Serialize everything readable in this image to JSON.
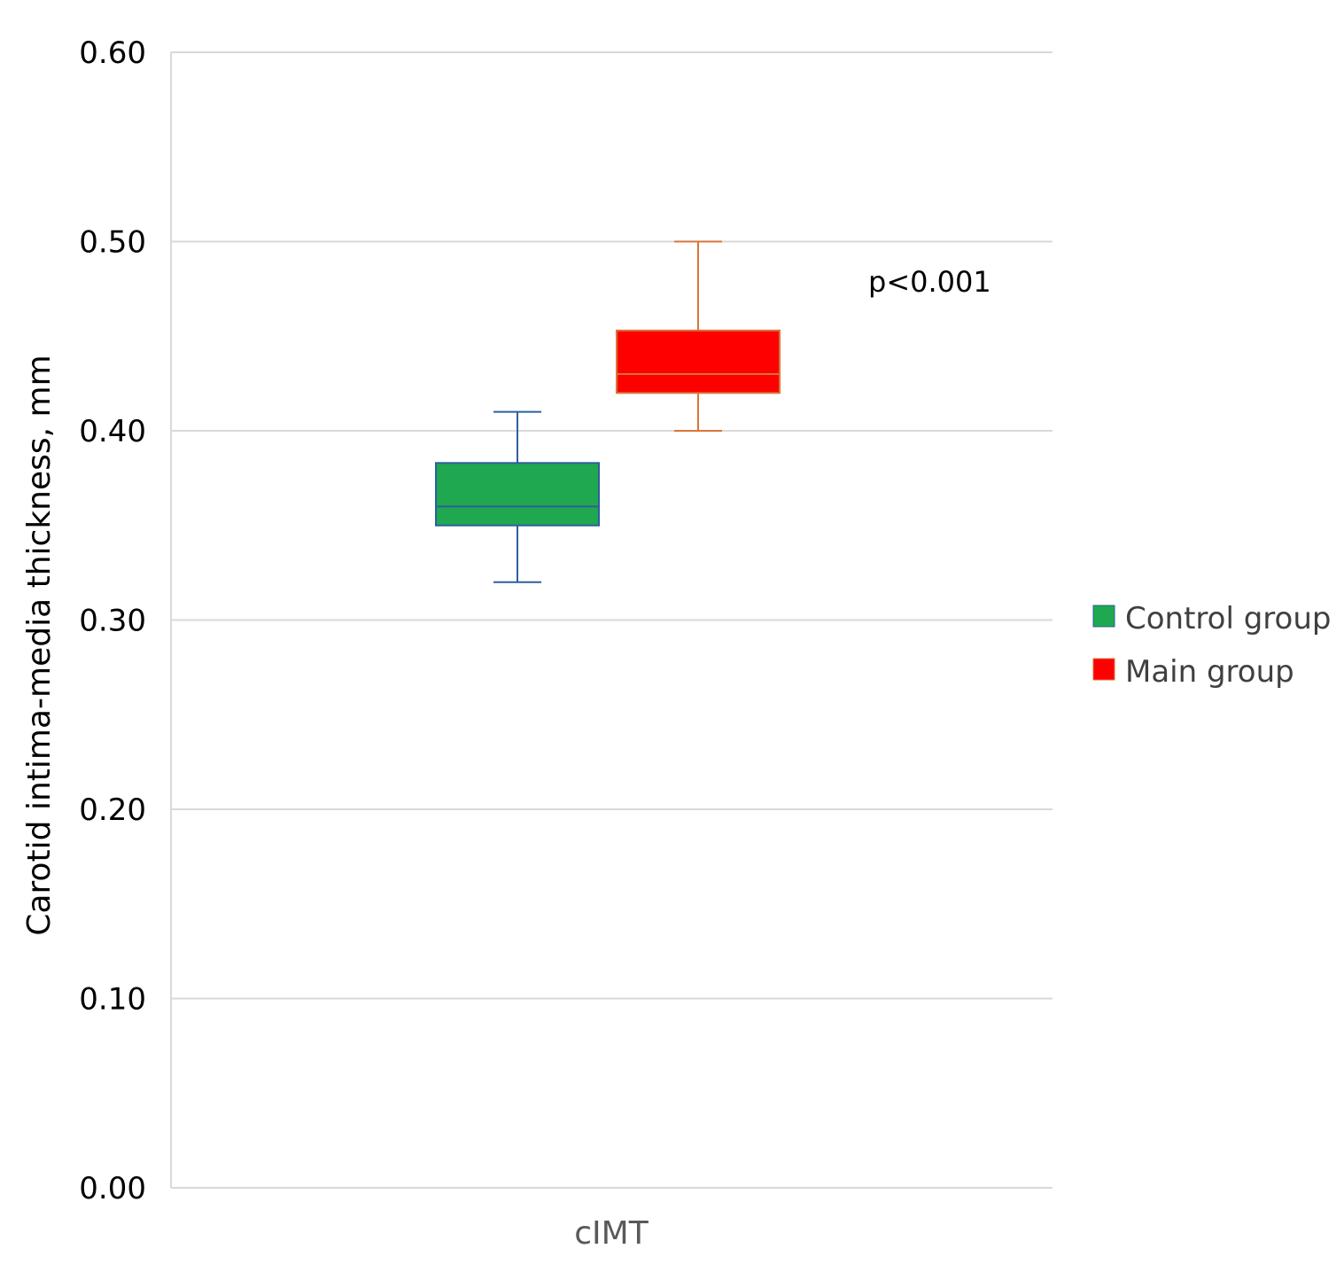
{
  "chart_data": {
    "type": "box",
    "title": "",
    "xlabel": "",
    "ylabel": "Carotid intima-media thickness, mm",
    "categories": [
      "cIMT"
    ],
    "ylim": [
      0,
      0.6
    ],
    "yticks": [
      "0.00",
      "0.10",
      "0.20",
      "0.30",
      "0.40",
      "0.50",
      "0.60"
    ],
    "grid": true,
    "legend_position": "right",
    "annotations": [
      "p<0.001"
    ],
    "series": [
      {
        "name": "Control group",
        "color": "#1fa84f",
        "stroke": "#2e5f9e",
        "min": 0.32,
        "q1": 0.35,
        "median": 0.36,
        "q3": 0.383,
        "max": 0.41
      },
      {
        "name": "Main group",
        "color": "#ff0000",
        "stroke": "#d9743a",
        "min": 0.4,
        "q1": 0.42,
        "median": 0.43,
        "q3": 0.453,
        "max": 0.5
      }
    ]
  }
}
